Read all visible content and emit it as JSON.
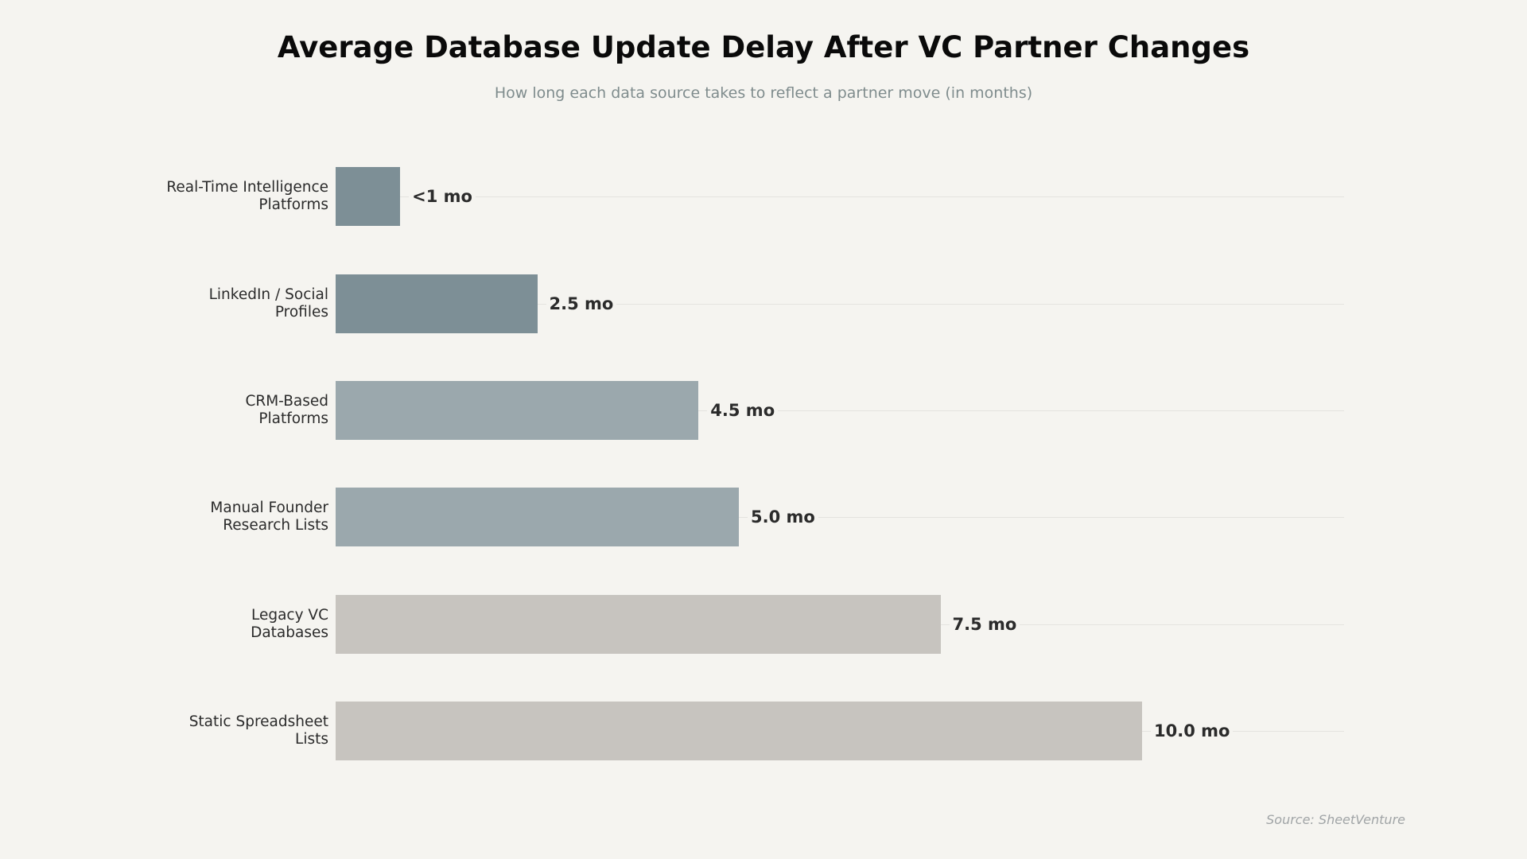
{
  "chart": {
    "title": "Average Database Update Delay After VC Partner Changes",
    "subtitle": "How long each data source takes to reflect a partner move (in months)",
    "source": "Source: SheetVenture"
  },
  "chart_data": {
    "type": "bar",
    "orientation": "horizontal",
    "title": "Average Database Update Delay After VC Partner Changes",
    "subtitle": "How long each data source takes to reflect a partner move (in months)",
    "xlabel": "",
    "ylabel": "",
    "xlim": [
      0,
      12.5
    ],
    "grid": "horizontal guide lines at each bar center",
    "legend": "none",
    "categories": [
      "Real-Time Intelligence Platforms",
      "LinkedIn / Social Profiles",
      "CRM-Based Platforms",
      "Manual Founder Research Lists",
      "Legacy VC Databases",
      "Static Spreadsheet Lists"
    ],
    "values": [
      0.8,
      2.5,
      4.5,
      5.0,
      7.5,
      10.0
    ],
    "value_labels": [
      "<1 mo",
      "2.5 mo",
      "4.5 mo",
      "5.0 mo",
      "7.5 mo",
      "10.0 mo"
    ],
    "colors": [
      "#7d8f96",
      "#7d8f96",
      "#9ba8ad",
      "#9ba8ad",
      "#c7c4bf",
      "#c7c4bf"
    ],
    "annotation": "Source: SheetVenture"
  },
  "bars": [
    {
      "label": "Real-Time Intelligence\nPlatforms",
      "value": 0.8,
      "text": "<1 mo",
      "color": "#7d8f96"
    },
    {
      "label": "LinkedIn / Social\nProfiles",
      "value": 2.5,
      "text": "2.5 mo",
      "color": "#7d8f96"
    },
    {
      "label": "CRM-Based\nPlatforms",
      "value": 4.5,
      "text": "4.5 mo",
      "color": "#9ba8ad"
    },
    {
      "label": "Manual Founder\nResearch Lists",
      "value": 5.0,
      "text": "5.0 mo",
      "color": "#9ba8ad"
    },
    {
      "label": "Legacy VC\nDatabases",
      "value": 7.5,
      "text": "7.5 mo",
      "color": "#c7c4bf"
    },
    {
      "label": "Static Spreadsheet\nLists",
      "value": 10.0,
      "text": "10.0 mo",
      "color": "#c7c4bf"
    }
  ]
}
